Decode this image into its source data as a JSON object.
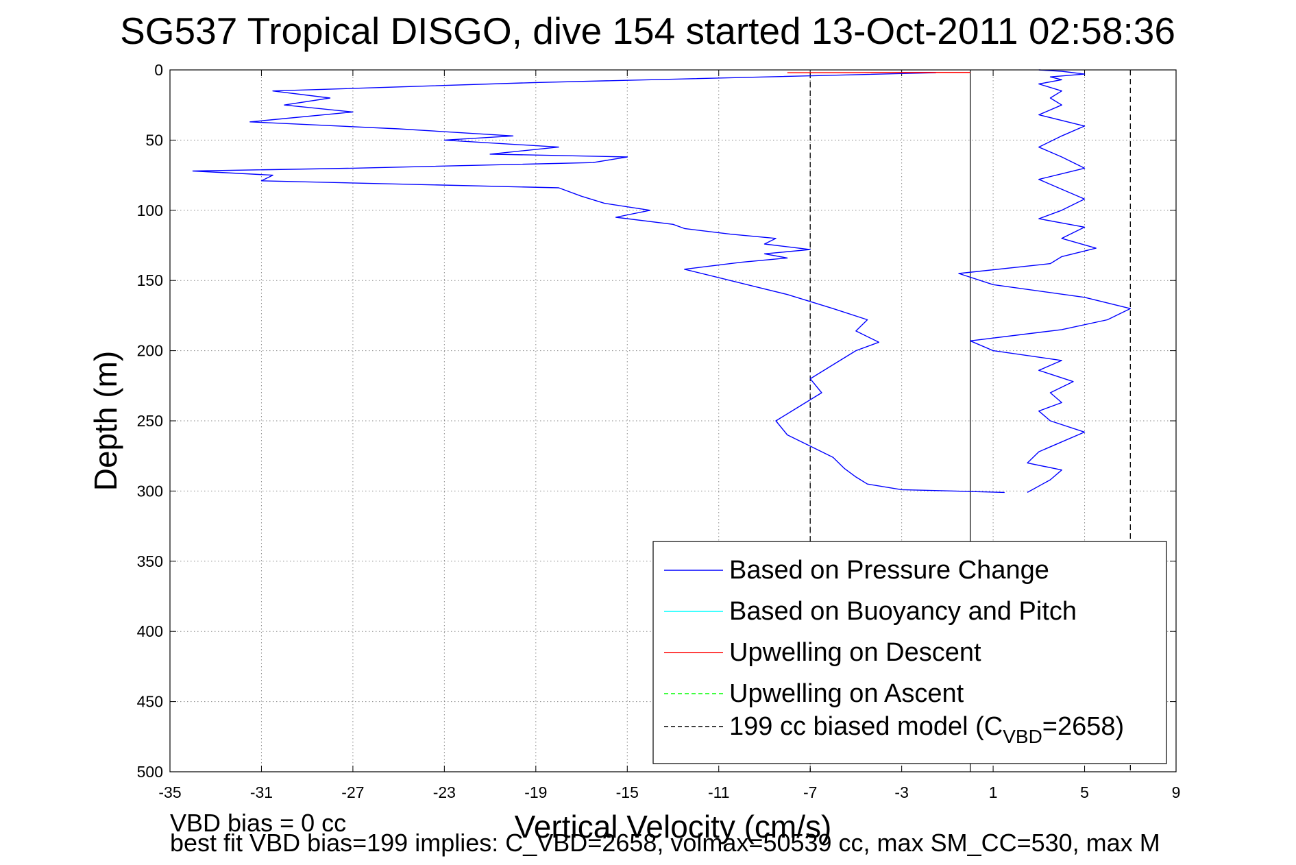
{
  "chart_data": {
    "type": "line",
    "title": "SG537 Tropical DISGO, dive 154 started 13-Oct-2011 02:58:36",
    "xlabel": "Vertical Velocity (cm/s)",
    "ylabel": "Depth (m)",
    "xlim": [
      -35,
      9
    ],
    "ylim": [
      0,
      500
    ],
    "y_reversed": true,
    "grid": true,
    "legend_position": "lower-right",
    "xticks": [
      "-35",
      "-31",
      "-27",
      "-23",
      "-19",
      "-15",
      "-11",
      "-7",
      "-3",
      "1",
      "5",
      "9"
    ],
    "yticks": [
      "0",
      "50",
      "100",
      "150",
      "200",
      "250",
      "300",
      "350",
      "400",
      "450",
      "500"
    ],
    "series": [
      {
        "name": "Based on Pressure Change",
        "color": "#0000ff",
        "style": "solid",
        "segments": [
          {
            "x": [
              -1.5,
              -19,
              -30.5,
              -28,
              -30,
              -27,
              -31.5,
              -25,
              -20,
              -23,
              -18,
              -21,
              -15,
              -16.5,
              -27,
              -34,
              -30.5,
              -31,
              -18,
              -17,
              -16,
              -14,
              -15.5,
              -13,
              -12.5,
              -10.5,
              -8.5,
              -9,
              -7,
              -9,
              -8,
              -10,
              -11.5,
              -12.5,
              -11,
              -9.5,
              -8,
              -7,
              -6,
              -4.5,
              -5,
              -4,
              -5,
              -6,
              -7,
              -6.5,
              -7.5,
              -8.5,
              -8,
              -7,
              -6,
              -5.5,
              -5,
              -4.5,
              -3,
              1.5
            ],
            "y": [
              2,
              9,
              15,
              20,
              25,
              30,
              37,
              42,
              47,
              50,
              55,
              60,
              62,
              66,
              70,
              72,
              75,
              79,
              84,
              90,
              95,
              100,
              105,
              110,
              113,
              117,
              120,
              124,
              128,
              131,
              134,
              137,
              140,
              142,
              148,
              154,
              160,
              165,
              170,
              178,
              186,
              194,
              200,
              210,
              220,
              230,
              240,
              250,
              260,
              268,
              276,
              284,
              290,
              295,
              299,
              301
            ]
          },
          {
            "x": [
              2.5,
              3.5,
              4,
              2.5,
              3,
              4,
              5,
              3.5,
              3,
              4,
              3.5,
              4.5,
              3,
              4,
              1,
              0,
              4,
              6,
              7,
              5,
              1,
              -0.5,
              3.5,
              4,
              5.5,
              4,
              5,
              3,
              4,
              5,
              4,
              3,
              5,
              4,
              3,
              4,
              5,
              3,
              4,
              3.5,
              4,
              3,
              4,
              3.5,
              5,
              4,
              3
            ],
            "y": [
              301,
              292,
              285,
              280,
              272,
              265,
              258,
              250,
              243,
              237,
              230,
              222,
              214,
              207,
              200,
              193,
              185,
              178,
              170,
              162,
              153,
              145,
              138,
              133,
              127,
              120,
              112,
              106,
              100,
              92,
              85,
              78,
              70,
              62,
              55,
              47,
              40,
              32,
              25,
              20,
              15,
              10,
              7,
              5,
              3,
              1,
              0
            ]
          }
        ]
      },
      {
        "name": "Based on Buoyancy and Pitch",
        "color": "#00ffff",
        "style": "solid",
        "segments": []
      },
      {
        "name": "Upwelling on Descent",
        "color": "#ff0000",
        "style": "solid",
        "segments": [
          {
            "x": [
              -8,
              -5,
              -2,
              0
            ],
            "y": [
              2.0,
              1.9,
              1.8,
              1.8
            ]
          }
        ]
      },
      {
        "name": "Upwelling on Ascent",
        "color": "#00ff00",
        "style": "dashed",
        "segments": []
      },
      {
        "name": "199 cc biased model (C",
        "legend_sub": "VBD",
        "legend_suffix": "=2658)",
        "color": "#000000",
        "style": "dashed",
        "segments": [
          {
            "x": [
              -7,
              -7
            ],
            "y": [
              2,
              500
            ]
          },
          {
            "x": [
              7,
              7
            ],
            "y": [
              0,
              500
            ]
          }
        ]
      }
    ],
    "reference_line": {
      "x": 0,
      "color": "#000000",
      "style": "solid"
    }
  },
  "footnotes": {
    "line1": "VBD bias = 0 cc",
    "line2": "best fit VBD bias=199 implies: C_VBD=2658, volmax=50539 cc, max SM_CC=530, max M"
  }
}
